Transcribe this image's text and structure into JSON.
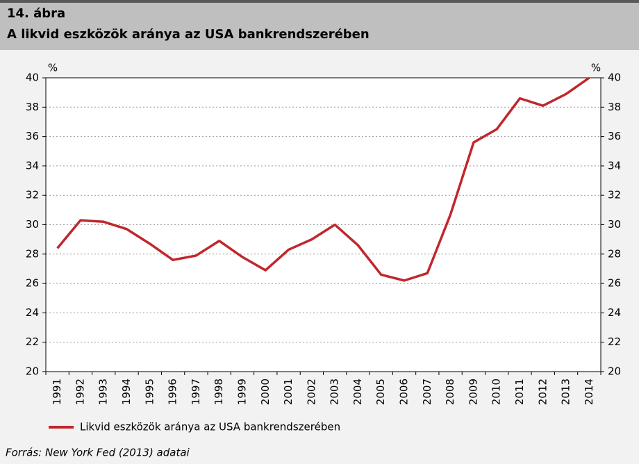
{
  "chart_data": {
    "type": "line",
    "title": "14. ábra",
    "subtitle": "A likvid eszközök aránya az USA bankrendszerében",
    "y_label": "%",
    "y2_label": "%",
    "source": "Forrás: New York Fed (2013) adatai",
    "categories": [
      "1991",
      "1992",
      "1993",
      "1994",
      "1995",
      "1996",
      "1997",
      "1998",
      "1999",
      "2000",
      "2001",
      "2002",
      "2003",
      "2004",
      "2005",
      "2006",
      "2007",
      "2008",
      "2009",
      "2010",
      "2011",
      "2012",
      "2013",
      "2014"
    ],
    "series": [
      {
        "name": "Likvid eszközök aránya az USA bankrendszerében",
        "color": "#c0272d",
        "values": [
          28.4,
          30.3,
          30.2,
          29.7,
          28.7,
          27.6,
          27.9,
          28.9,
          27.8,
          26.9,
          28.3,
          29.0,
          30.0,
          28.6,
          26.6,
          26.2,
          26.7,
          30.7,
          35.6,
          36.5,
          38.6,
          38.1,
          38.9,
          40.0
        ]
      }
    ],
    "ylim": [
      20,
      40
    ],
    "yticks": [
      20,
      22,
      24,
      26,
      28,
      30,
      32,
      34,
      36,
      38,
      40
    ],
    "y2lim": [
      20,
      40
    ],
    "y2ticks": [
      20,
      22,
      24,
      26,
      28,
      30,
      32,
      34,
      36,
      38,
      40
    ],
    "grid": true,
    "legend": "bottom"
  }
}
